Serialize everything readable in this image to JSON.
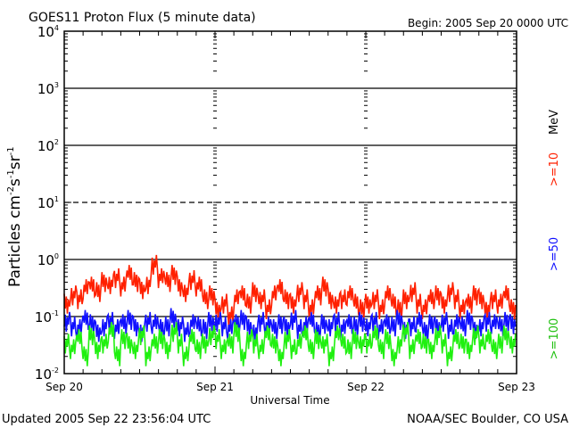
{
  "chart_data": {
    "type": "line",
    "title": "GOES11 Proton Flux (5 minute data)",
    "begin": "Begin: 2005 Sep 20 0000 UTC",
    "xlabel": "Universal Time",
    "ylabel_main": "Particles cm",
    "ylabel_parts": [
      "-2",
      "s",
      "-1",
      "sr",
      "-1"
    ],
    "y_scale": "log",
    "ylim": [
      0.01,
      10000
    ],
    "y_ticks": [
      {
        "base": "10",
        "exp": "4",
        "value": 10000
      },
      {
        "base": "10",
        "exp": "3",
        "value": 1000
      },
      {
        "base": "10",
        "exp": "2",
        "value": 100
      },
      {
        "base": "10",
        "exp": "1",
        "value": 10
      },
      {
        "base": "10",
        "exp": "0",
        "value": 1
      },
      {
        "base": "10",
        "exp": "-1",
        "value": 0.1
      },
      {
        "base": "10",
        "exp": "-2",
        "value": 0.01
      }
    ],
    "x_range_hours": [
      0,
      72
    ],
    "x_ticks": [
      {
        "label": "Sep 20",
        "hour": 0
      },
      {
        "label": "Sep 21",
        "hour": 24
      },
      {
        "label": "Sep 22",
        "hour": 48
      },
      {
        "label": "Sep 23",
        "hour": 72
      }
    ],
    "reference_lines": [
      {
        "value": 1000,
        "style": "solid"
      },
      {
        "value": 100,
        "style": "solid"
      },
      {
        "value": 10,
        "style": "dashed"
      },
      {
        "value": 1,
        "style": "solid"
      },
      {
        "value": 0.1,
        "style": "solid"
      }
    ],
    "units_label": "MeV",
    "series": [
      {
        "name": ">=10",
        "color": "#ff2000",
        "values": [
          0.25,
          0.35,
          0.3,
          0.45,
          0.5,
          0.4,
          0.6,
          0.55,
          0.7,
          0.5,
          0.8,
          0.6,
          0.45,
          0.55,
          1.2,
          0.7,
          0.6,
          0.8,
          0.5,
          0.4,
          0.65,
          0.5,
          0.3,
          0.35,
          0.2,
          0.25,
          0.15,
          0.3,
          0.35,
          0.25,
          0.4,
          0.3,
          0.2,
          0.35,
          0.45,
          0.3,
          0.25,
          0.4,
          0.3,
          0.2,
          0.35,
          0.5,
          0.3,
          0.25,
          0.3,
          0.35,
          0.25,
          0.2,
          0.25,
          0.3,
          0.2,
          0.35,
          0.25,
          0.2,
          0.3,
          0.4,
          0.25,
          0.2,
          0.3,
          0.35,
          0.25,
          0.4,
          0.3,
          0.2,
          0.25,
          0.35,
          0.3,
          0.2,
          0.3,
          0.25,
          0.35,
          0.2
        ]
      },
      {
        "name": ">=50",
        "color": "#1010ff",
        "values": [
          0.12,
          0.1,
          0.09,
          0.13,
          0.11,
          0.08,
          0.1,
          0.12,
          0.09,
          0.11,
          0.13,
          0.1,
          0.08,
          0.12,
          0.11,
          0.09,
          0.1,
          0.14,
          0.1,
          0.08,
          0.11,
          0.1,
          0.09,
          0.12,
          0.12,
          0.1,
          0.09,
          0.11,
          0.13,
          0.1,
          0.08,
          0.12,
          0.1,
          0.09,
          0.11,
          0.1,
          0.13,
          0.09,
          0.1,
          0.12,
          0.08,
          0.11,
          0.1,
          0.12,
          0.09,
          0.11,
          0.1,
          0.12,
          0.1,
          0.12,
          0.09,
          0.11,
          0.1,
          0.13,
          0.09,
          0.1,
          0.12,
          0.08,
          0.11,
          0.1,
          0.12,
          0.09,
          0.11,
          0.1,
          0.13,
          0.09,
          0.1,
          0.12,
          0.11,
          0.1,
          0.12,
          0.11
        ]
      },
      {
        "name": ">=100",
        "color": "#20f010",
        "values": [
          0.05,
          0.04,
          0.06,
          0.03,
          0.07,
          0.04,
          0.05,
          0.08,
          0.03,
          0.06,
          0.05,
          0.04,
          0.07,
          0.03,
          0.05,
          0.06,
          0.04,
          0.08,
          0.05,
          0.03,
          0.06,
          0.04,
          0.05,
          0.07,
          0.06,
          0.04,
          0.05,
          0.08,
          0.03,
          0.06,
          0.05,
          0.04,
          0.07,
          0.05,
          0.03,
          0.06,
          0.04,
          0.05,
          0.07,
          0.04,
          0.06,
          0.05,
          0.03,
          0.07,
          0.05,
          0.04,
          0.06,
          0.05,
          0.05,
          0.07,
          0.04,
          0.06,
          0.03,
          0.05,
          0.08,
          0.04,
          0.06,
          0.05,
          0.04,
          0.07,
          0.05,
          0.03,
          0.06,
          0.05,
          0.04,
          0.07,
          0.05,
          0.06,
          0.04,
          0.05,
          0.07,
          0.05
        ]
      }
    ]
  },
  "footer": {
    "updated": "Updated 2005 Sep 22 23:56:04 UTC",
    "credit": "NOAA/SEC Boulder, CO USA"
  }
}
